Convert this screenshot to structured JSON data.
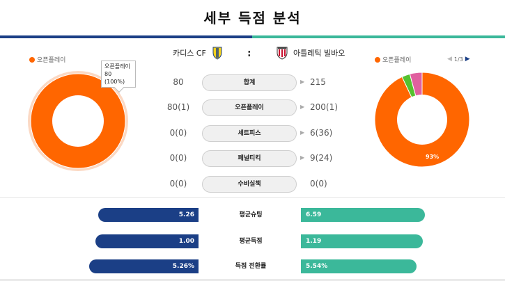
{
  "header": {
    "title": "세부 득점 분석"
  },
  "legend": {
    "left_label": "오픈플레이",
    "right_label": "오픈플레이",
    "color": "#ff6600"
  },
  "teams": {
    "home": {
      "name": "카디스 CF",
      "crest": "cadiz-crest-icon"
    },
    "separator": ":",
    "away": {
      "name": "아틀레틱 빌바오",
      "crest": "athletic-bilbao-crest-icon"
    }
  },
  "pager": {
    "current": "1/3",
    "prev_icon": "triangle-left-icon",
    "next_icon": "triangle-right-icon"
  },
  "tooltip": {
    "label": "오픈플레이",
    "value": "80 (100%)"
  },
  "stats": [
    {
      "key": "total",
      "label": "합계",
      "home": "80",
      "away": "215"
    },
    {
      "key": "open-play",
      "label": "오픈플레이",
      "home": "80(1)",
      "away": "200(1)"
    },
    {
      "key": "set-piece",
      "label": "세트피스",
      "home": "0(0)",
      "away": "6(36)"
    },
    {
      "key": "penalty",
      "label": "페널티킥",
      "home": "0(0)",
      "away": "9(24)"
    },
    {
      "key": "own-goal",
      "label": "수비실책",
      "home": "0(0)",
      "away": "0(0)"
    }
  ],
  "comparisons": [
    {
      "key": "avg-shots",
      "label": "평균슈팅",
      "home": "5.26",
      "away": "6.59"
    },
    {
      "key": "avg-goals",
      "label": "평균득점",
      "home": "1.00",
      "away": "1.19"
    },
    {
      "key": "conversion",
      "label": "득점 전환률",
      "home": "5.26%",
      "away": "5.54%"
    }
  ],
  "colors": {
    "home_bar": "#1b3f86",
    "away_bar": "#3bb89a",
    "open_play": "#ff6600",
    "set_piece": "#55c12f",
    "penalty": "#e0609f"
  },
  "chart_data": [
    {
      "type": "pie",
      "categories": [
        "오픈플레이"
      ],
      "values": [
        80
      ],
      "data_labels": []
    },
    {
      "type": "pie",
      "categories": [
        "오픈플레이",
        "세트피스",
        "페널티킥",
        "수비실책"
      ],
      "values": [
        200,
        6,
        9,
        0
      ],
      "data_labels": [
        "93%"
      ]
    }
  ]
}
